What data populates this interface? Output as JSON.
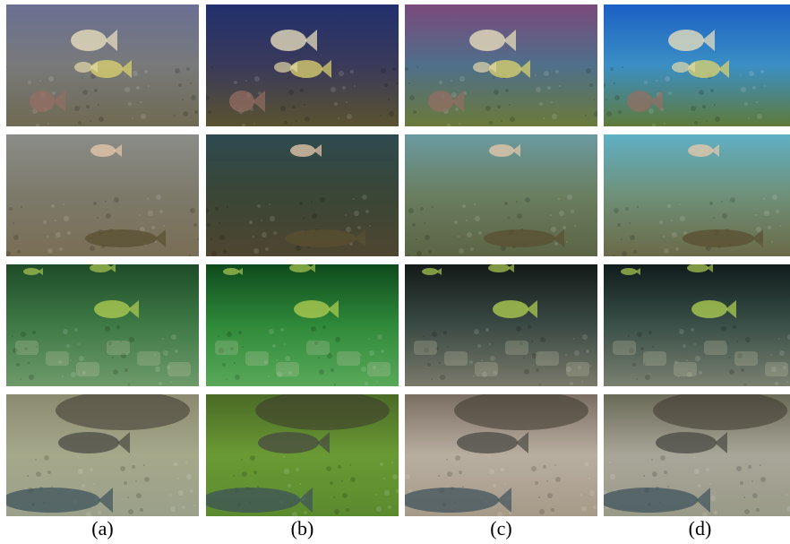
{
  "figure": {
    "columns": [
      {
        "label": "(a)"
      },
      {
        "label": "(b)"
      },
      {
        "label": "(c)"
      },
      {
        "label": "(d)"
      }
    ],
    "rows": [
      {
        "scene": "bluegill-fish-school",
        "tints": [
          {
            "top": "#6b6f93",
            "mid": "#787a7a",
            "bottom": "#6f6a52"
          },
          {
            "top": "#22306e",
            "mid": "#3a3a5a",
            "bottom": "#5a5330"
          },
          {
            "top": "#7a4a7c",
            "mid": "#4f6f8a",
            "bottom": "#6b7a3a"
          },
          {
            "top": "#1b5fc4",
            "mid": "#3b8fc4",
            "bottom": "#5f7a3a"
          }
        ]
      },
      {
        "scene": "trout-on-seabed",
        "tints": [
          {
            "top": "#8a8c88",
            "mid": "#7d7a6a",
            "bottom": "#7a6e55"
          },
          {
            "top": "#2e4a50",
            "mid": "#3a4636",
            "bottom": "#4e4630"
          },
          {
            "top": "#6a9aa0",
            "mid": "#6a7e60",
            "bottom": "#5c6444"
          },
          {
            "top": "#5fb0c4",
            "mid": "#6f9078",
            "bottom": "#6a6a48"
          }
        ]
      },
      {
        "scene": "striped-fish-on-rocks",
        "tints": [
          {
            "top": "#1e4c28",
            "mid": "#3f7a46",
            "bottom": "#6e9a6a"
          },
          {
            "top": "#0e4a1c",
            "mid": "#2f8a3a",
            "bottom": "#5aa85a"
          },
          {
            "top": "#141a18",
            "mid": "#3a4a44",
            "bottom": "#7a7a6a"
          },
          {
            "top": "#101c1c",
            "mid": "#3a5048",
            "bottom": "#7a8070"
          }
        ]
      },
      {
        "scene": "grouper-near-rock",
        "tints": [
          {
            "top": "#8a8a70",
            "mid": "#a6a88a",
            "bottom": "#9aa08a"
          },
          {
            "top": "#4a6a26",
            "mid": "#6a9a34",
            "bottom": "#5a8a2e"
          },
          {
            "top": "#7a6e62",
            "mid": "#b8aea0",
            "bottom": "#a69a88"
          },
          {
            "top": "#6a6a58",
            "mid": "#a8a698",
            "bottom": "#9a9a88"
          }
        ]
      }
    ]
  }
}
